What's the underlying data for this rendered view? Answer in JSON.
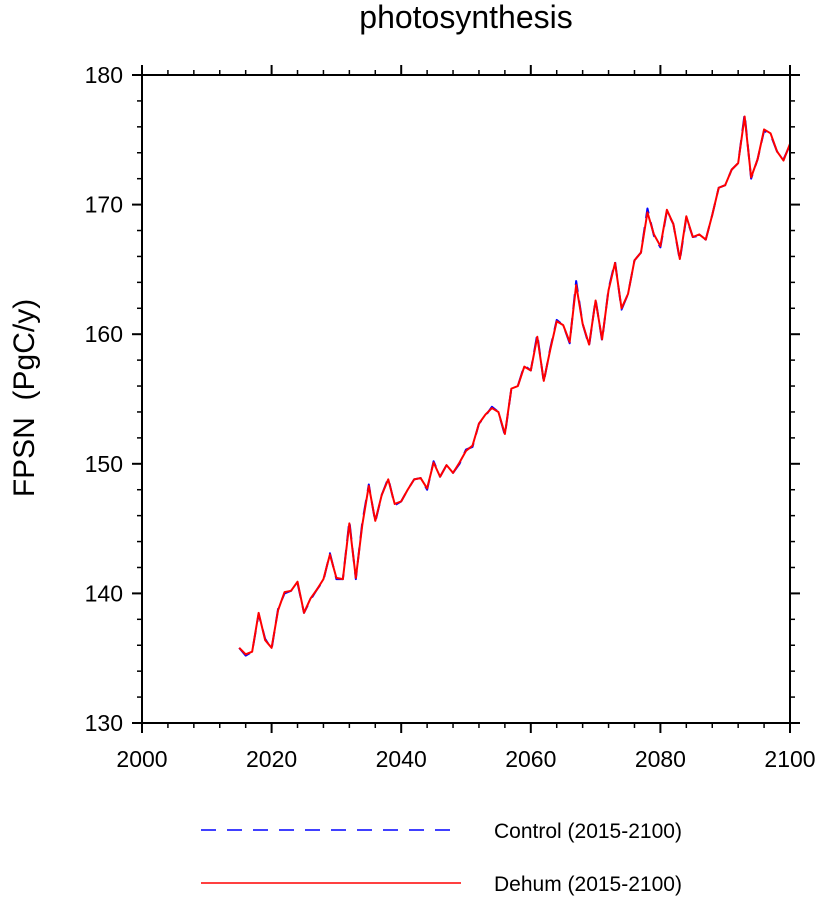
{
  "chart_data": {
    "type": "line",
    "title": "photosynthesis",
    "xlabel": "",
    "ylabel": "FPSN  (PgC/y)",
    "xlim": [
      2000,
      2100
    ],
    "ylim": [
      130,
      180
    ],
    "x_major_ticks": [
      2000,
      2020,
      2040,
      2060,
      2080,
      2100
    ],
    "y_major_ticks": [
      130,
      140,
      150,
      160,
      170,
      180
    ],
    "grid": false,
    "legend_position": "bottom",
    "x": [
      2015,
      2016,
      2017,
      2018,
      2019,
      2020,
      2021,
      2022,
      2023,
      2024,
      2025,
      2026,
      2027,
      2028,
      2029,
      2030,
      2031,
      2032,
      2033,
      2034,
      2035,
      2036,
      2037,
      2038,
      2039,
      2040,
      2041,
      2042,
      2043,
      2044,
      2045,
      2046,
      2047,
      2048,
      2049,
      2050,
      2051,
      2052,
      2053,
      2054,
      2055,
      2056,
      2057,
      2058,
      2059,
      2060,
      2061,
      2062,
      2063,
      2064,
      2065,
      2066,
      2067,
      2068,
      2069,
      2070,
      2071,
      2072,
      2073,
      2074,
      2075,
      2076,
      2077,
      2078,
      2079,
      2080,
      2081,
      2082,
      2083,
      2084,
      2085,
      2086,
      2087,
      2088,
      2089,
      2090,
      2091,
      2092,
      2093,
      2094,
      2095,
      2096,
      2097,
      2098,
      2099,
      2100
    ],
    "series": [
      {
        "name": "Control (2015-2100)",
        "color": "#0000ff",
        "dash": "dashed",
        "values": [
          135.8,
          135.2,
          135.5,
          138.4,
          136.5,
          135.7,
          138.8,
          140.0,
          140.2,
          140.8,
          138.5,
          139.5,
          140.3,
          141.0,
          143.1,
          141.1,
          141.1,
          145.6,
          141.1,
          145.5,
          148.4,
          145.5,
          147.6,
          148.9,
          146.8,
          147.1,
          148.0,
          148.8,
          148.9,
          148.0,
          150.2,
          149.0,
          149.9,
          149.3,
          150.0,
          151.1,
          151.3,
          153.1,
          153.7,
          154.4,
          154.0,
          152.2,
          155.8,
          156.0,
          157.6,
          157.2,
          160.0,
          156.3,
          158.9,
          161.1,
          160.7,
          159.3,
          164.1,
          160.8,
          159.1,
          162.7,
          159.5,
          163.5,
          165.6,
          161.9,
          163.1,
          165.7,
          166.3,
          169.7,
          167.6,
          166.7,
          169.5,
          168.5,
          165.7,
          169.0,
          167.5,
          167.6,
          167.3,
          169.2,
          171.3,
          171.5,
          172.7,
          173.2,
          177.0,
          172.0,
          173.5,
          175.7,
          175.4,
          174.1,
          173.5,
          174.6
        ]
      },
      {
        "name": "Dehum (2015-2100)",
        "color": "#ff0000",
        "dash": "solid",
        "values": [
          135.8,
          135.3,
          135.5,
          138.5,
          136.4,
          135.8,
          138.7,
          140.1,
          140.2,
          140.9,
          138.5,
          139.6,
          140.3,
          141.1,
          143.0,
          141.2,
          141.1,
          145.4,
          141.2,
          145.3,
          148.3,
          145.6,
          147.6,
          148.8,
          146.9,
          147.1,
          148.0,
          148.8,
          148.9,
          148.1,
          150.1,
          149.0,
          149.9,
          149.3,
          150.1,
          151.0,
          151.4,
          153.1,
          153.8,
          154.3,
          154.0,
          152.3,
          155.8,
          156.0,
          157.5,
          157.2,
          159.8,
          156.4,
          158.8,
          161.0,
          160.7,
          159.4,
          163.8,
          160.8,
          159.2,
          162.6,
          159.6,
          163.4,
          165.5,
          162.0,
          163.1,
          165.7,
          166.3,
          169.4,
          167.7,
          166.8,
          169.6,
          168.5,
          165.8,
          169.1,
          167.5,
          167.7,
          167.3,
          169.2,
          171.3,
          171.5,
          172.7,
          173.2,
          176.8,
          172.1,
          173.5,
          175.8,
          175.5,
          174.1,
          173.4,
          174.7
        ]
      }
    ]
  }
}
